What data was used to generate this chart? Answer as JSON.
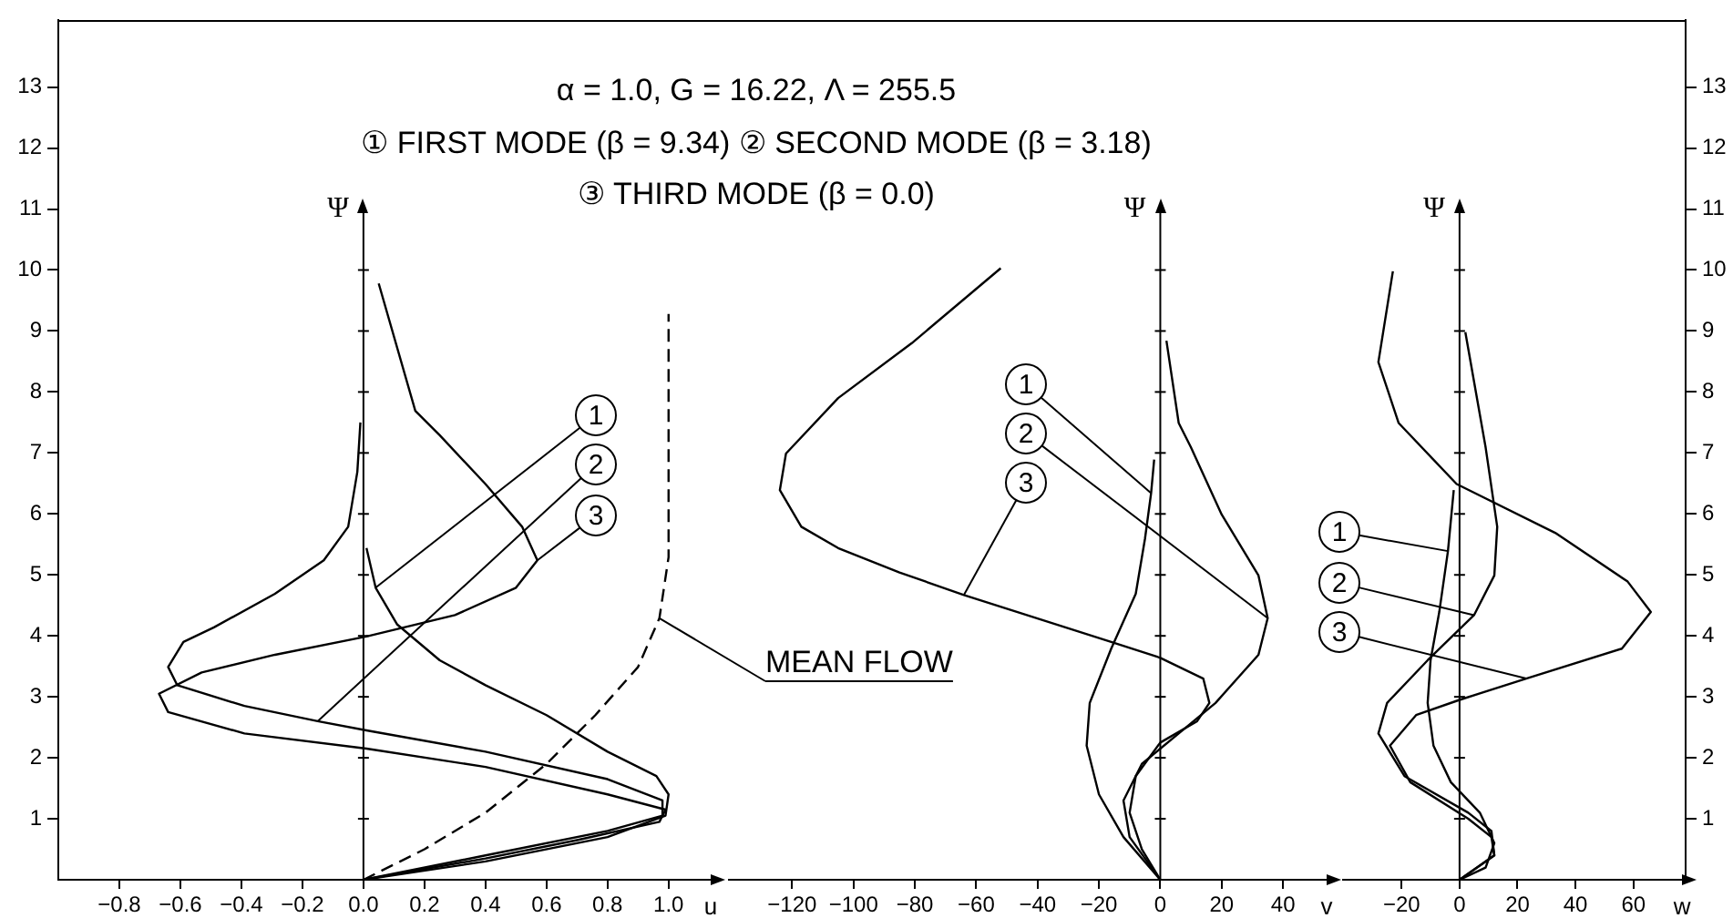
{
  "chart_data": [
    {
      "type": "line",
      "title": "α = 1.0, G = 16.22, Λ = 255.5",
      "subtitle": "① FIRST MODE (β = 9.34) ② SECOND MODE (β = 3.18)",
      "annotations": [
        "③ THIRD MODE (β = 0.0)"
      ],
      "xlabel": "u",
      "ylabel": "Ψ",
      "xlim": [
        -1.0,
        1.15
      ],
      "ylim": [
        0,
        14.1
      ],
      "xticks": [
        {
          "value": -0.8,
          "label": "−0.8"
        },
        {
          "value": -0.6,
          "label": "−0.6"
        },
        {
          "value": -0.4,
          "label": "−0.4"
        },
        {
          "value": -0.2,
          "label": "−0.2"
        },
        {
          "value": 0,
          "label": "0.0"
        },
        {
          "value": 0.2,
          "label": "0.2"
        },
        {
          "value": 0.4,
          "label": "0.4"
        },
        {
          "value": 0.6,
          "label": "0.6"
        },
        {
          "value": 0.8,
          "label": "0.8"
        },
        {
          "value": 1.0,
          "label": "1.0"
        }
      ],
      "yticks": [
        1,
        2,
        3,
        4,
        5,
        6,
        7,
        8,
        9,
        10,
        11,
        12,
        13
      ],
      "grid": false,
      "legend": "right",
      "marker": "none",
      "line_style": "solid",
      "ref_lines": [
        {
          "axis": "x",
          "value": 0
        }
      ],
      "series": [
        {
          "name": "1",
          "color": "#000000",
          "x": [
            0.01,
            0.04,
            0.11,
            0.25,
            0.4,
            0.6,
            0.8,
            0.96,
            1.0,
            0.99,
            0.8,
            0.4,
            0
          ],
          "values": [
            5.44,
            4.79,
            4.19,
            3.6,
            3.19,
            2.7,
            2.1,
            1.7,
            1.4,
            1.05,
            0.7,
            0.3,
            0
          ]
        },
        {
          "name": "2",
          "color": "#000000",
          "x": [
            -0.01,
            -0.02,
            -0.05,
            -0.13,
            -0.29,
            -0.49,
            -0.59,
            -0.64,
            -0.61,
            -0.39,
            -0.15,
            0.01,
            0.4,
            0.8,
            0.98,
            0.98,
            0.8,
            0.4,
            0
          ],
          "values": [
            7.5,
            6.69,
            5.79,
            5.24,
            4.69,
            4.14,
            3.9,
            3.49,
            3.19,
            2.85,
            2.6,
            2.45,
            2.1,
            1.65,
            1.3,
            1.05,
            0.8,
            0.4,
            0
          ]
        },
        {
          "name": "3",
          "color": "#000000",
          "x": [
            0.05,
            0.17,
            0.25,
            0.4,
            0.52,
            0.57,
            0.5,
            0.3,
            0.01,
            -0.29,
            -0.53,
            -0.67,
            -0.64,
            -0.39,
            0.01,
            0.4,
            0.8,
            0.99,
            0.97,
            0.7,
            0.4,
            0
          ],
          "values": [
            9.78,
            7.69,
            7.29,
            6.49,
            5.79,
            5.24,
            4.79,
            4.34,
            3.99,
            3.69,
            3.4,
            3.05,
            2.75,
            2.4,
            2.15,
            1.85,
            1.4,
            1.15,
            0.95,
            0.65,
            0.35,
            0
          ]
        },
        {
          "name": "MEAN FLOW",
          "color": "#000000",
          "line_style": "dashed",
          "x": [
            0,
            0.2,
            0.4,
            0.6,
            0.76,
            0.9,
            0.97,
            1.0,
            1.0,
            1.0
          ],
          "values": [
            0,
            0.5,
            1.1,
            1.9,
            2.7,
            3.49,
            4.29,
            5.29,
            7.29,
            9.28
          ]
        }
      ]
    },
    {
      "type": "line",
      "xlabel": "v",
      "ylabel": "Ψ",
      "xlim": [
        -140.6,
        55.4
      ],
      "ylim": [
        0,
        14.1
      ],
      "tick_labels": "x",
      "xticks": [
        {
          "value": -120,
          "label": "−120"
        },
        {
          "value": -100,
          "label": "−100"
        },
        {
          "value": -80,
          "label": "−80"
        },
        {
          "value": -60,
          "label": "−60"
        },
        {
          "value": -40,
          "label": "−40"
        },
        {
          "value": -20,
          "label": "−20"
        },
        0,
        20,
        40
      ],
      "yticks": [
        1,
        2,
        3,
        4,
        5,
        6,
        7,
        8,
        9,
        10,
        11,
        12,
        13
      ],
      "grid": false,
      "legend": "top left",
      "marker": "none",
      "line_style": "solid",
      "ref_lines": [
        {
          "axis": "x",
          "value": 0
        }
      ],
      "series": [
        {
          "name": "1",
          "color": "#000000",
          "x": [
            -2,
            -3,
            -5,
            -8,
            -16,
            -23,
            -24,
            -20,
            -12,
            0
          ],
          "values": [
            6.89,
            6.34,
            5.59,
            4.69,
            3.79,
            2.9,
            2.2,
            1.4,
            0.7,
            0
          ]
        },
        {
          "name": "2",
          "color": "#000000",
          "x": [
            2,
            6,
            10,
            20,
            32,
            35,
            32,
            18,
            6,
            -6,
            -12,
            -10,
            0
          ],
          "values": [
            8.84,
            7.49,
            7.09,
            5.99,
            4.99,
            4.29,
            3.69,
            2.9,
            2.4,
            1.9,
            1.3,
            0.7,
            0
          ]
        },
        {
          "name": "3",
          "color": "#000000",
          "x": [
            -52,
            -81,
            -105,
            -122,
            -124,
            -117,
            -105,
            -85,
            -64,
            -16,
            0,
            14,
            16,
            12,
            0,
            -8,
            -10,
            -6,
            0
          ],
          "values": [
            10.03,
            8.8,
            7.9,
            6.99,
            6.39,
            5.79,
            5.44,
            5.04,
            4.67,
            3.9,
            3.64,
            3.3,
            2.9,
            2.6,
            2.25,
            1.7,
            1.1,
            0.5,
            0
          ]
        }
      ]
    },
    {
      "type": "line",
      "xlabel": "w",
      "ylabel": "Ψ",
      "xlim": [
        -40.2,
        78
      ],
      "ylim": [
        0,
        14.1
      ],
      "xticks": [
        {
          "value": -20,
          "label": "−20"
        },
        0,
        20,
        40,
        60
      ],
      "yticks": [
        1,
        2,
        3,
        4,
        5,
        6,
        7,
        8,
        9,
        10,
        11,
        12,
        13
      ],
      "grid": false,
      "legend": "left",
      "marker": "none",
      "line_style": "solid",
      "ref_lines": [
        {
          "axis": "x",
          "value": 0
        }
      ],
      "series": [
        {
          "name": "1",
          "color": "#000000",
          "x": [
            -2,
            -4,
            -7,
            -10,
            -11,
            -9,
            -3,
            7,
            12,
            9,
            0
          ],
          "values": [
            6.39,
            5.39,
            4.39,
            3.6,
            2.9,
            2.2,
            1.6,
            1.1,
            0.6,
            0.2,
            0
          ]
        },
        {
          "name": "2",
          "color": "#000000",
          "x": [
            2,
            9,
            13,
            12,
            5,
            -11,
            -25,
            -28,
            -19,
            3,
            11,
            12,
            0
          ],
          "values": [
            8.98,
            7.09,
            5.79,
            4.99,
            4.34,
            3.6,
            2.9,
            2.4,
            1.7,
            1.1,
            0.8,
            0.4,
            0
          ]
        },
        {
          "name": "3",
          "color": "#000000",
          "x": [
            -23,
            -28,
            -21,
            -1,
            33,
            58,
            66,
            56,
            23,
            0,
            -15,
            -24,
            -17,
            3,
            11,
            12,
            0
          ],
          "values": [
            9.98,
            8.49,
            7.49,
            6.49,
            5.69,
            4.89,
            4.39,
            3.79,
            3.3,
            2.95,
            2.7,
            2.2,
            1.6,
            1.0,
            0.7,
            0.4,
            0
          ]
        }
      ]
    }
  ]
}
